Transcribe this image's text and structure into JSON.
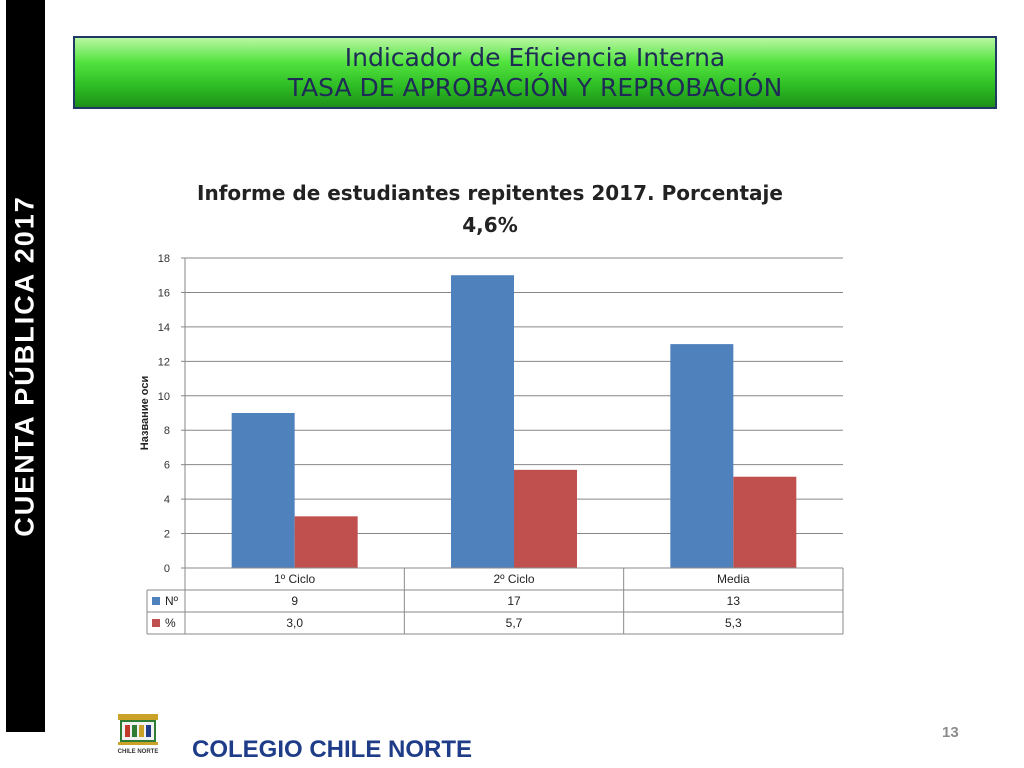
{
  "side_band": {
    "text": "CUENTA  PÚBLICA  2017"
  },
  "header": {
    "line1": "Indicador de Eficiencia Interna",
    "line2": "TASA DE APROBACIÓN Y REPROBACIÓN"
  },
  "chart_data": {
    "type": "bar",
    "title_line1": "Informe de estudiantes repitentes 2017. Porcentaje",
    "title_line2": "4,6%",
    "ylabel": "Название оси",
    "xlabel": "",
    "ylim": [
      0,
      18
    ],
    "y_ticks": [
      0,
      2,
      4,
      6,
      8,
      10,
      12,
      14,
      16,
      18
    ],
    "categories": [
      "1º Ciclo",
      "2º Ciclo",
      "Media"
    ],
    "grid": true,
    "legend": "data-table",
    "series": [
      {
        "name": "Nº",
        "values": [
          9,
          17,
          13
        ],
        "labels": [
          "9",
          "17",
          "13"
        ],
        "color": "#4f81bd"
      },
      {
        "name": "%",
        "values": [
          3.0,
          5.7,
          5.3
        ],
        "labels": [
          "3,0",
          "5,7",
          "5,3"
        ],
        "color": "#c0504d"
      }
    ]
  },
  "footer": {
    "school_name": "COLEGIO CHILE NORTE",
    "logo_text": "CHILE NORTE",
    "page_number": "13"
  }
}
